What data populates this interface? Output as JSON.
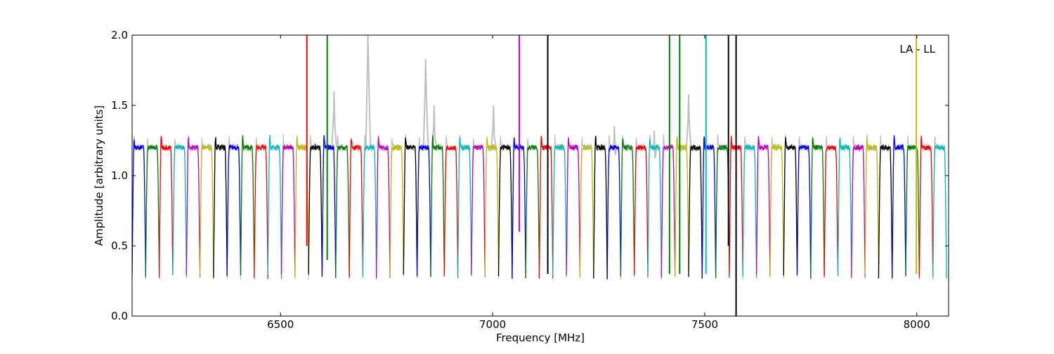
{
  "chart_data": {
    "type": "line",
    "xlabel": "Frequency [MHz]",
    "ylabel": "Amplitude [arbitrary units]",
    "annotation": "LA - LL",
    "xlim": [
      6150,
      8075
    ],
    "ylim": [
      0.0,
      2.0
    ],
    "xticks": [
      {
        "value": 6500,
        "label": "6500"
      },
      {
        "value": 7000,
        "label": "7000"
      },
      {
        "value": 7500,
        "label": "7500"
      },
      {
        "value": 8000,
        "label": "8000"
      }
    ],
    "yticks": [
      {
        "value": 0.0,
        "label": "0.0"
      },
      {
        "value": 0.5,
        "label": "0.5"
      },
      {
        "value": 1.0,
        "label": "1.0"
      },
      {
        "value": 1.5,
        "label": "1.5"
      },
      {
        "value": 2.0,
        "label": "2.0"
      }
    ],
    "grid": false,
    "palette": [
      "#0000ff",
      "#008000",
      "#ff0000",
      "#00bfbf",
      "#bf00bf",
      "#bfbf00",
      "#000000"
    ],
    "background_series_color": "#c0c0c0",
    "subband": {
      "width_mhz": 32,
      "floor": 0.28,
      "plateau": 1.2
    },
    "subband_starts": [
      6150,
      6182,
      6214,
      6246,
      6278,
      6310,
      6342,
      6374,
      6406,
      6438,
      6470,
      6502,
      6534,
      6566,
      6598,
      6630,
      6662,
      6694,
      6726,
      6758,
      6790,
      6822,
      6854,
      6886,
      6918,
      6950,
      6982,
      7014,
      7046,
      7078,
      7110,
      7142,
      7174,
      7206,
      7238,
      7270,
      7302,
      7334,
      7366,
      7398,
      7430,
      7462,
      7494,
      7526,
      7558,
      7590,
      7622,
      7654,
      7686,
      7718,
      7750,
      7782,
      7814,
      7846,
      7878,
      7910,
      7942,
      7974,
      8006,
      8038
    ],
    "spikes": [
      {
        "x": 6562,
        "y_top": 2.0,
        "y_bottom": 0.5,
        "color": "#ff0000"
      },
      {
        "x": 6610,
        "y_top": 2.0,
        "y_bottom": 0.4,
        "color": "#008000"
      },
      {
        "x": 7063,
        "y_top": 2.0,
        "y_bottom": 0.6,
        "color": "#bf00bf"
      },
      {
        "x": 7130,
        "y_top": 2.0,
        "y_bottom": 0.3,
        "color": "#000000"
      },
      {
        "x": 7417,
        "y_top": 2.0,
        "y_bottom": 0.3,
        "color": "#008000"
      },
      {
        "x": 7441,
        "y_top": 2.0,
        "y_bottom": 0.3,
        "color": "#008000"
      },
      {
        "x": 7503,
        "y_top": 2.0,
        "y_bottom": 0.3,
        "color": "#00bfbf"
      },
      {
        "x": 7556,
        "y_top": 2.0,
        "y_bottom": 0.5,
        "color": "#000000"
      },
      {
        "x": 7574,
        "y_top": 2.0,
        "y_bottom": 0.0,
        "color": "#000000"
      },
      {
        "x": 7999,
        "y_top": 2.0,
        "y_bottom": 0.3,
        "color": "#bfbf00"
      }
    ],
    "gray_bumps": [
      {
        "x": 6706,
        "y": 2.0
      },
      {
        "x": 6842,
        "y": 1.83
      },
      {
        "x": 6862,
        "y": 1.5
      },
      {
        "x": 6626,
        "y": 1.6
      },
      {
        "x": 7002,
        "y": 1.5
      },
      {
        "x": 7287,
        "y": 1.35
      },
      {
        "x": 7381,
        "y": 1.32
      },
      {
        "x": 7462,
        "y": 1.58
      }
    ]
  }
}
